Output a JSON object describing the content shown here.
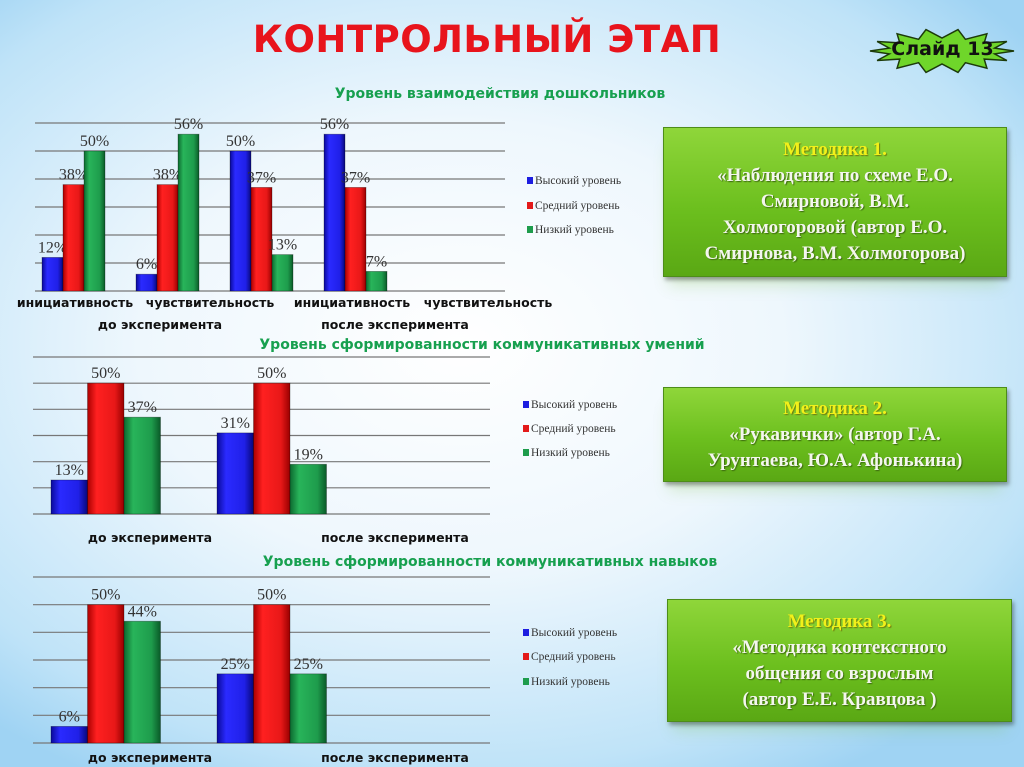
{
  "slide": {
    "title": "КОНТРОЛЬНЫЙ ЭТАП",
    "badge": "Слайд 13"
  },
  "methods": [
    {
      "heading": "Методика 1.",
      "lines": [
        "«Наблюдения по схеме Е.О.",
        "Смирновой, В.М.",
        "Холмогоровой (автор Е.О.",
        "Смирнова, В.М. Холмогорова)"
      ]
    },
    {
      "heading": "Методика 2.",
      "lines": [
        "«Рукавички» (автор Г.А.",
        "Урунтаева, Ю.А. Афонькина)"
      ]
    },
    {
      "heading": "Методика 3.",
      "lines": [
        "«Методика контекстного",
        "общения со взрослым",
        "(автор Е.Е. Кравцова )"
      ]
    }
  ],
  "colors": {
    "high": "#1d1de0",
    "mid": "#e31a1a",
    "low": "#1e9c4c",
    "title": "#e8141c",
    "chart_title": "#17a04f"
  },
  "chart_data": [
    {
      "type": "bar",
      "title": "Уровень взаимодействия дошкольников",
      "categories": [
        "инициативность",
        "чувствительность",
        "инициативность",
        "чувствительность"
      ],
      "groups": [
        "до эксперимента",
        "после эксперимента"
      ],
      "series": [
        {
          "name": "Высокий уровень",
          "values": [
            12,
            6,
            50,
            56
          ],
          "labels": [
            "12%",
            "6%",
            "50%",
            "56%"
          ]
        },
        {
          "name": "Средний уровень",
          "values": [
            38,
            38,
            37,
            37
          ],
          "labels": [
            "38%",
            "38%",
            "37%",
            "37%"
          ]
        },
        {
          "name": "Низкий уровень",
          "values": [
            50,
            56,
            13,
            7
          ],
          "labels": [
            "50%",
            "56%",
            "13%",
            "7%"
          ]
        }
      ],
      "ylim": [
        0,
        60
      ],
      "grid": true,
      "legend": "right"
    },
    {
      "type": "bar",
      "title": "Уровень сформированности коммуникативных умений",
      "categories": [
        "до эксперимента",
        "после эксперимента"
      ],
      "series": [
        {
          "name": "Высокий уровень",
          "values": [
            13,
            31
          ],
          "labels": [
            "13%",
            "31%"
          ]
        },
        {
          "name": "Средний уровень",
          "values": [
            50,
            50
          ],
          "labels": [
            "50%",
            "50%"
          ]
        },
        {
          "name": "Низкий уровень",
          "values": [
            37,
            19
          ],
          "labels": [
            "37%",
            "19%"
          ]
        }
      ],
      "ylim": [
        0,
        60
      ],
      "grid": true,
      "legend": "right"
    },
    {
      "type": "bar",
      "title": "Уровень сформированности коммуникативных навыков",
      "categories": [
        "до эксперимента",
        "после эксперимента"
      ],
      "series": [
        {
          "name": "Высокий уровень",
          "values": [
            6,
            25
          ],
          "labels": [
            "6%",
            "25%"
          ]
        },
        {
          "name": "Средний уровень",
          "values": [
            50,
            50
          ],
          "labels": [
            "50%",
            "50%"
          ]
        },
        {
          "name": "Низкий уровень",
          "values": [
            44,
            25
          ],
          "labels": [
            "44%",
            "25%"
          ]
        }
      ],
      "ylim": [
        0,
        60
      ],
      "grid": true,
      "legend": "right"
    }
  ]
}
